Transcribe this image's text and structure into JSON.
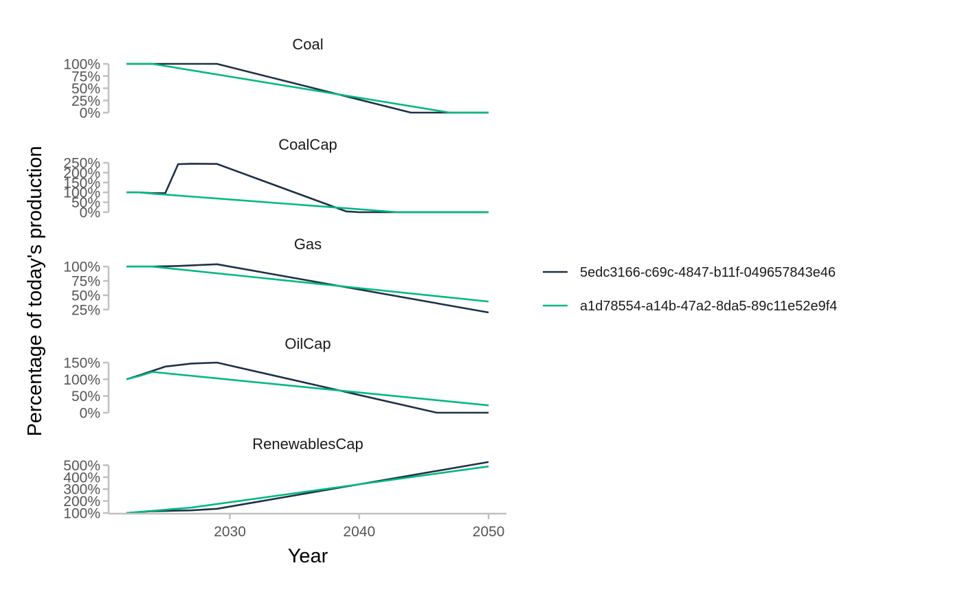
{
  "chart_data": {
    "type": "line",
    "xlabel": "Year",
    "ylabel": "Percentage of today's production",
    "xlim": [
      2022,
      2050
    ],
    "x_ticks": [
      {
        "value": 2030,
        "label": "2030"
      },
      {
        "value": 2040,
        "label": "2040"
      },
      {
        "value": 2050,
        "label": "2050"
      }
    ],
    "legend_position": "right",
    "series_styles": [
      {
        "name": "5edc3166-c69c-4847-b11f-049657843e46",
        "color": "#1e3148"
      },
      {
        "name": "a1d78554-a14b-47a2-8da5-89c11e52e9f4",
        "color": "#00b97f"
      }
    ],
    "panels": [
      {
        "title": "Coal",
        "ylim": [
          0,
          100
        ],
        "y_ticks": [
          {
            "value": 0,
            "label": "0%"
          },
          {
            "value": 25,
            "label": "25%"
          },
          {
            "value": 50,
            "label": "50%"
          },
          {
            "value": 75,
            "label": "75%"
          },
          {
            "value": 100,
            "label": "100%"
          }
        ],
        "series": [
          {
            "name": "5edc3166-c69c-4847-b11f-049657843e46",
            "x": [
              2022,
              2029,
              2044,
              2050
            ],
            "y": [
              100,
              100,
              0,
              0
            ]
          },
          {
            "name": "a1d78554-a14b-47a2-8da5-89c11e52e9f4",
            "x": [
              2022,
              2024,
              2047,
              2050
            ],
            "y": [
              100,
              100,
              0,
              0
            ]
          }
        ]
      },
      {
        "title": "CoalCap",
        "ylim": [
          0,
          250
        ],
        "y_ticks": [
          {
            "value": 0,
            "label": "0%"
          },
          {
            "value": 50,
            "label": "50%"
          },
          {
            "value": 100,
            "label": "100%"
          },
          {
            "value": 150,
            "label": "150%"
          },
          {
            "value": 200,
            "label": "200%"
          },
          {
            "value": 250,
            "label": "250%"
          }
        ],
        "series": [
          {
            "name": "5edc3166-c69c-4847-b11f-049657843e46",
            "x": [
              2022,
              2023,
              2024,
              2025,
              2026,
              2027,
              2029,
              2039,
              2040,
              2050
            ],
            "y": [
              100,
              100,
              96,
              96,
              243,
              245,
              244,
              4,
              0,
              0
            ]
          },
          {
            "name": "a1d78554-a14b-47a2-8da5-89c11e52e9f4",
            "x": [
              2022,
              2023,
              2024,
              2043,
              2050
            ],
            "y": [
              100,
              100,
              94,
              0,
              0
            ]
          }
        ]
      },
      {
        "title": "Gas",
        "ylim": [
          20,
          105
        ],
        "y_ticks": [
          {
            "value": 25,
            "label": "25%"
          },
          {
            "value": 50,
            "label": "50%"
          },
          {
            "value": 75,
            "label": "75%"
          },
          {
            "value": 100,
            "label": "100%"
          }
        ],
        "series": [
          {
            "name": "5edc3166-c69c-4847-b11f-049657843e46",
            "x": [
              2022,
              2024,
              2026,
              2029,
              2050
            ],
            "y": [
              100,
              100,
              101,
              104,
              20
            ]
          },
          {
            "name": "a1d78554-a14b-47a2-8da5-89c11e52e9f4",
            "x": [
              2022,
              2023,
              2024,
              2050
            ],
            "y": [
              100,
              100,
              100,
              39
            ]
          }
        ]
      },
      {
        "title": "OilCap",
        "ylim": [
          0,
          150
        ],
        "y_ticks": [
          {
            "value": 0,
            "label": "0%"
          },
          {
            "value": 50,
            "label": "50%"
          },
          {
            "value": 100,
            "label": "100%"
          },
          {
            "value": 150,
            "label": "150%"
          }
        ],
        "series": [
          {
            "name": "5edc3166-c69c-4847-b11f-049657843e46",
            "x": [
              2022,
              2023,
              2025,
              2027,
              2029,
              2046,
              2050
            ],
            "y": [
              100,
              112,
              138,
              147,
              150,
              0,
              0
            ]
          },
          {
            "name": "a1d78554-a14b-47a2-8da5-89c11e52e9f4",
            "x": [
              2022,
              2023,
              2024,
              2050
            ],
            "y": [
              100,
              110,
              122,
              22
            ]
          }
        ]
      },
      {
        "title": "RenewablesCap",
        "ylim": [
          100,
          520
        ],
        "y_ticks": [
          {
            "value": 100,
            "label": "100%"
          },
          {
            "value": 200,
            "label": "200%"
          },
          {
            "value": 300,
            "label": "300%"
          },
          {
            "value": 400,
            "label": "400%"
          },
          {
            "value": 500,
            "label": "500%"
          }
        ],
        "series": [
          {
            "name": "5edc3166-c69c-4847-b11f-049657843e46",
            "x": [
              2022,
              2024,
              2027,
              2029,
              2050
            ],
            "y": [
              100,
              115,
              122,
              135,
              527
            ]
          },
          {
            "name": "a1d78554-a14b-47a2-8da5-89c11e52e9f4",
            "x": [
              2022,
              2027,
              2050
            ],
            "y": [
              100,
              145,
              490
            ]
          }
        ]
      }
    ]
  }
}
